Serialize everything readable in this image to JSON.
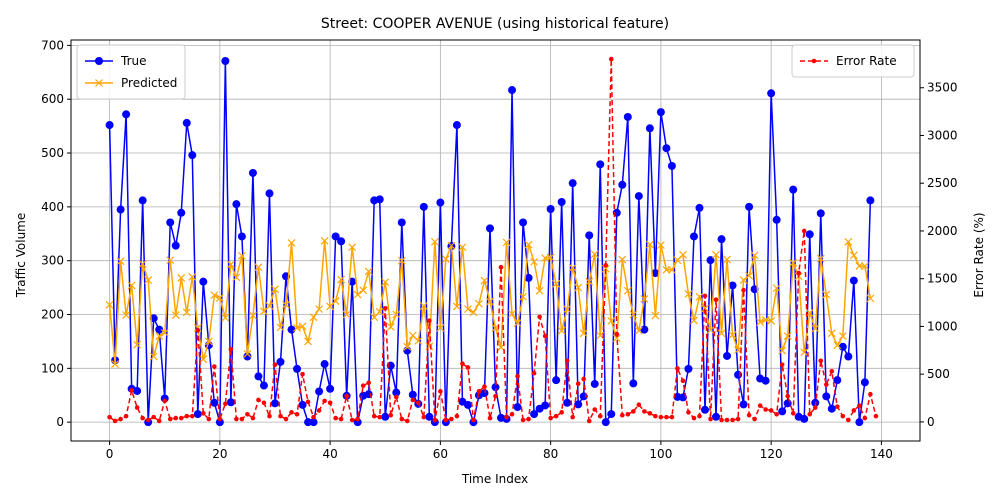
{
  "chart_data": {
    "type": "line",
    "title": "Street: COOPER AVENUE (using historical feature)",
    "xlabel": "Time Index",
    "ylabel": "Traffic Volume",
    "ylabel_right": "Error Rate (%)",
    "xlim": [
      -7,
      147
    ],
    "ylim": [
      -35,
      710
    ],
    "ylim_right": [
      -200,
      4000
    ],
    "x_ticks": [
      0,
      20,
      40,
      60,
      80,
      100,
      120,
      140
    ],
    "y_ticks": [
      0,
      100,
      200,
      300,
      400,
      500,
      600,
      700
    ],
    "y_ticks_right": [
      0,
      500,
      1000,
      1500,
      2000,
      2500,
      3000,
      3500
    ],
    "grid": true,
    "legend_left_position": "upper-left",
    "legend_right_position": "upper-right",
    "series": [
      {
        "name": "True",
        "axis": "left",
        "color": "#0000ff",
        "marker": "circle",
        "values": [
          552,
          115,
          395,
          572,
          62,
          58,
          412,
          0,
          193,
          172,
          44,
          371,
          328,
          389,
          556,
          496,
          15,
          261,
          143,
          36,
          0,
          671,
          37,
          405,
          345,
          122,
          463,
          85,
          68,
          425,
          35,
          112,
          271,
          172,
          99,
          32,
          0,
          0,
          57,
          108,
          62,
          345,
          336,
          49,
          261,
          0,
          49,
          52,
          412,
          414,
          10,
          105,
          55,
          371,
          133,
          51,
          34,
          400,
          10,
          0,
          408,
          0,
          327,
          552,
          38,
          32,
          0,
          50,
          54,
          360,
          65,
          8,
          6,
          617,
          28,
          371,
          268,
          15,
          25,
          31,
          396,
          78,
          409,
          36,
          444,
          33,
          48,
          347,
          71,
          479,
          0,
          15,
          389,
          441,
          567,
          72,
          420,
          172,
          546,
          277,
          576,
          509,
          476,
          47,
          46,
          99,
          345,
          398,
          23,
          301,
          10,
          340,
          123,
          254,
          88,
          33,
          400,
          247,
          81,
          77,
          611,
          376,
          20,
          35,
          432,
          10,
          6,
          349,
          36,
          388,
          48,
          25,
          78,
          140,
          122,
          263,
          0,
          74,
          412
        ]
      },
      {
        "name": "Predicted",
        "axis": "left",
        "color": "#ffa500",
        "marker": "x",
        "values": [
          218,
          108,
          299,
          199,
          254,
          144,
          294,
          264,
          122,
          160,
          166,
          301,
          199,
          268,
          204,
          270,
          175,
          117,
          150,
          236,
          231,
          194,
          293,
          269,
          309,
          127,
          198,
          288,
          206,
          216,
          247,
          176,
          218,
          333,
          175,
          178,
          150,
          195,
          210,
          337,
          215,
          225,
          265,
          200,
          325,
          237,
          245,
          280,
          195,
          205,
          260,
          177,
          200,
          300,
          140,
          161,
          151,
          216,
          141,
          335,
          175,
          303,
          328,
          215,
          325,
          210,
          204,
          220,
          263,
          224,
          175,
          139,
          334,
          201,
          184,
          233,
          330,
          298,
          244,
          305,
          306,
          257,
          170,
          210,
          287,
          250,
          165,
          261,
          312,
          161,
          285,
          188,
          156,
          302,
          244,
          200,
          170,
          229,
          330,
          198,
          329,
          283,
          283,
          301,
          311,
          238,
          189,
          233,
          211,
          171,
          311,
          165,
          302,
          162,
          134,
          264,
          272,
          310,
          186,
          190,
          188,
          249,
          133,
          160,
          296,
          271,
          130,
          203,
          174,
          304,
          237,
          165,
          143,
          160,
          335,
          310,
          290,
          290,
          230
        ]
      },
      {
        "name": "Error Rate",
        "axis": "right",
        "color": "#ff0000",
        "marker": "dot",
        "values": [
          50,
          10,
          30,
          60,
          330,
          150,
          40,
          20,
          50,
          10,
          220,
          30,
          40,
          40,
          60,
          60,
          960,
          90,
          30,
          580,
          30,
          190,
          760,
          30,
          30,
          80,
          40,
          230,
          200,
          60,
          600,
          60,
          30,
          100,
          80,
          500,
          210,
          50,
          120,
          220,
          200,
          40,
          30,
          270,
          20,
          30,
          380,
          410,
          60,
          50,
          1190,
          70,
          260,
          30,
          10,
          230,
          200,
          50,
          1060,
          20,
          320,
          20,
          30,
          60,
          610,
          570,
          20,
          320,
          370,
          40,
          270,
          1620,
          50,
          80,
          480,
          20,
          30,
          510,
          1100,
          900,
          40,
          60,
          100,
          640,
          50,
          400,
          450,
          10,
          130,
          60,
          1640,
          3800,
          920,
          70,
          80,
          110,
          180,
          110,
          90,
          60,
          50,
          50,
          50,
          560,
          430,
          100,
          40,
          60,
          1320,
          30,
          1280,
          20,
          20,
          20,
          30,
          1380,
          70,
          30,
          170,
          130,
          120,
          80,
          600,
          270,
          90,
          1560,
          2000,
          80,
          150,
          640,
          390,
          530,
          160,
          60,
          20,
          120,
          170,
          40,
          290,
          60
        ]
      }
    ]
  }
}
